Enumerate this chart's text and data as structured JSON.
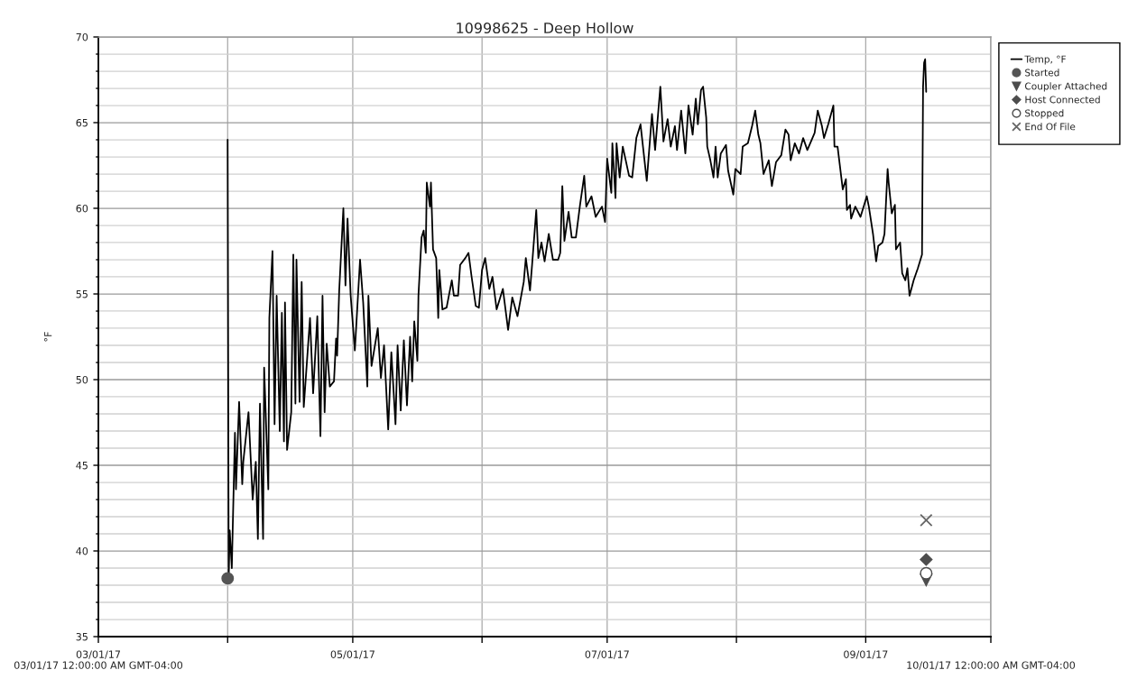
{
  "chart_data": {
    "type": "line",
    "title": "10998625 - Deep Hollow",
    "ylabel": "°F",
    "annotations": [
      "03/01/17 12:00:00 AM GMT-04:00",
      "10/01/17 12:00:00 AM GMT-04:00"
    ],
    "xlim": [
      "2017-03-01",
      "2017-10-01"
    ],
    "xticks": [
      {
        "value": "2017-03-01",
        "label": "03/01/17"
      },
      {
        "value": "2017-04-01",
        "label": null
      },
      {
        "value": "2017-05-01",
        "label": "05/01/17"
      },
      {
        "value": "2017-06-01",
        "label": null
      },
      {
        "value": "2017-07-01",
        "label": "07/01/17"
      },
      {
        "value": "2017-08-01",
        "label": null
      },
      {
        "value": "2017-09-01",
        "label": "09/01/17"
      },
      {
        "value": "2017-10-01",
        "label": null
      }
    ],
    "ylim": [
      35,
      70
    ],
    "yticks": [
      35,
      {
        "value": 36,
        "label": null
      },
      {
        "value": 37,
        "label": null
      },
      {
        "value": 38,
        "label": null
      },
      {
        "value": 39,
        "label": null
      },
      40,
      {
        "value": 41,
        "label": null
      },
      {
        "value": 42,
        "label": null
      },
      {
        "value": 43,
        "label": null
      },
      {
        "value": 44,
        "label": null
      },
      45,
      {
        "value": 46,
        "label": null
      },
      {
        "value": 47,
        "label": null
      },
      {
        "value": 48,
        "label": null
      },
      {
        "value": 49,
        "label": null
      },
      50,
      {
        "value": 51,
        "label": null
      },
      {
        "value": 52,
        "label": null
      },
      {
        "value": 53,
        "label": null
      },
      {
        "value": 54,
        "label": null
      },
      55,
      {
        "value": 56,
        "label": null
      },
      {
        "value": 57,
        "label": null
      },
      {
        "value": 58,
        "label": null
      },
      {
        "value": 59,
        "label": null
      },
      60,
      {
        "value": 61,
        "label": null
      },
      {
        "value": 62,
        "label": null
      },
      {
        "value": 63,
        "label": null
      },
      {
        "value": 64,
        "label": null
      },
      65,
      {
        "value": 66,
        "label": null
      },
      {
        "value": 67,
        "label": null
      },
      {
        "value": 68,
        "label": null
      },
      {
        "value": 69,
        "label": null
      },
      70
    ],
    "grid": true,
    "legend": "top right",
    "series": [
      {
        "name": "Temp, °F",
        "color": "#000000",
        "marker": "none",
        "line_style": "solid",
        "x": [
          "2017-04-01T00:00",
          "2017-04-01T06:00",
          "2017-04-01T12:00",
          "2017-04-02T00:00",
          "2017-04-02T18:00",
          "2017-04-03T00:00",
          "2017-04-03T18:00",
          "2017-04-04T12:00",
          "2017-04-04T18:00",
          "2017-04-06T00:00",
          "2017-04-07T00:00",
          "2017-04-07T18:00",
          "2017-04-08T06:00",
          "2017-04-08T18:00",
          "2017-04-09T12:00",
          "2017-04-09T18:00",
          "2017-04-10T18:00",
          "2017-04-11T00:00",
          "2017-04-11T18:00",
          "2017-04-12T06:00",
          "2017-04-12T18:00",
          "2017-04-13T12:00",
          "2017-04-14T00:00",
          "2017-04-14T12:00",
          "2017-04-14T18:00",
          "2017-04-15T06:00",
          "2017-04-16T06:00",
          "2017-04-16T18:00",
          "2017-04-17T06:00",
          "2017-04-17T12:00",
          "2017-04-18T06:00",
          "2017-04-18T18:00",
          "2017-04-19T06:00",
          "2017-04-20T18:00",
          "2017-04-21T12:00",
          "2017-04-22T12:00",
          "2017-04-23T06:00",
          "2017-04-23T18:00",
          "2017-04-24T06:00",
          "2017-04-24T18:00",
          "2017-04-25T12:00",
          "2017-04-26T12:00",
          "2017-04-27T00:00",
          "2017-04-27T06:00",
          "2017-04-27T18:00",
          "2017-04-28T18:00",
          "2017-04-29T06:00",
          "2017-04-29T18:00",
          "2017-04-30T12:00",
          "2017-05-01T12:00",
          "2017-05-02T18:00",
          "2017-05-03T12:00",
          "2017-05-04T12:00",
          "2017-05-04T18:00",
          "2017-05-05T12:00",
          "2017-05-07T00:00",
          "2017-05-07T18:00",
          "2017-05-08T12:00",
          "2017-05-09T12:00",
          "2017-05-10T06:00",
          "2017-05-11T06:00",
          "2017-05-11T18:00",
          "2017-05-12T12:00",
          "2017-05-13T06:00",
          "2017-05-14T00:00",
          "2017-05-14T18:00",
          "2017-05-15T06:00",
          "2017-05-15T18:00",
          "2017-05-16T12:00",
          "2017-05-16T18:00",
          "2017-05-17T12:00",
          "2017-05-18T00:00",
          "2017-05-18T12:00",
          "2017-05-18T18:00",
          "2017-05-19T12:00",
          "2017-05-19T18:00",
          "2017-05-20T06:00",
          "2017-05-21T00:00",
          "2017-05-21T12:00",
          "2017-05-21T18:00",
          "2017-05-22T12:00",
          "2017-05-23T12:00",
          "2017-05-24T18:00",
          "2017-05-25T06:00",
          "2017-05-26T06:00",
          "2017-05-26T18:00",
          "2017-05-28T00:00",
          "2017-05-28T18:00",
          "2017-05-29T12:00",
          "2017-05-30T12:00",
          "2017-05-31T06:00",
          "2017-06-01T00:00",
          "2017-06-01T18:00",
          "2017-06-02T18:00",
          "2017-06-03T12:00",
          "2017-06-04T12:00",
          "2017-06-06T00:00",
          "2017-06-07T06:00",
          "2017-06-08T06:00",
          "2017-06-09T12:00",
          "2017-06-11T00:00",
          "2017-06-11T12:00",
          "2017-06-12T12:00",
          "2017-06-13T00:00",
          "2017-06-14T00:00",
          "2017-06-14T12:00",
          "2017-06-15T06:00",
          "2017-06-16T00:00",
          "2017-06-17T00:00",
          "2017-06-18T00:00",
          "2017-06-19T06:00",
          "2017-06-19T18:00",
          "2017-06-20T06:00",
          "2017-06-20T18:00",
          "2017-06-21T18:00",
          "2017-06-22T12:00",
          "2017-06-23T12:00",
          "2017-06-24T12:00",
          "2017-06-25T12:00",
          "2017-06-26T00:00",
          "2017-06-27T06:00",
          "2017-06-28T06:00",
          "2017-06-29T18:00",
          "2017-06-30T12:00",
          "2017-07-01T00:00",
          "2017-07-02T00:00",
          "2017-07-02T06:00",
          "2017-07-03T00:00",
          "2017-07-03T06:00",
          "2017-07-04T00:00",
          "2017-07-04T18:00",
          "2017-07-06T06:00",
          "2017-07-07T00:00",
          "2017-07-08T00:00",
          "2017-07-09T00:00",
          "2017-07-10T12:00",
          "2017-07-11T18:00",
          "2017-07-12T12:00",
          "2017-07-13T18:00",
          "2017-07-14T12:00",
          "2017-07-15T12:00",
          "2017-07-16T06:00",
          "2017-07-17T06:00",
          "2017-07-17T18:00",
          "2017-07-18T18:00",
          "2017-07-19T18:00",
          "2017-07-20T12:00",
          "2017-07-21T12:00",
          "2017-07-22T06:00",
          "2017-07-22T18:00",
          "2017-07-23T12:00",
          "2017-07-24T00:00",
          "2017-07-24T18:00",
          "2017-07-25T00:00",
          "2017-07-25T18:00",
          "2017-07-26T12:00",
          "2017-07-27T00:00",
          "2017-07-27T12:00",
          "2017-07-28T06:00",
          "2017-07-29T12:00",
          "2017-07-30T00:00",
          "2017-07-31T06:00",
          "2017-07-31T18:00",
          "2017-08-02T00:00",
          "2017-08-02T12:00",
          "2017-08-03T18:00",
          "2017-08-04T18:00",
          "2017-08-05T12:00",
          "2017-08-06T06:00",
          "2017-08-06T18:00",
          "2017-08-07T12:00",
          "2017-08-08T18:00",
          "2017-08-09T12:00",
          "2017-08-10T12:00",
          "2017-08-11T18:00",
          "2017-08-12T18:00",
          "2017-08-13T12:00",
          "2017-08-14T00:00",
          "2017-08-15T00:00",
          "2017-08-16T00:00",
          "2017-08-17T00:00",
          "2017-08-18T00:00",
          "2017-08-19T18:00",
          "2017-08-20T12:00",
          "2017-08-21T12:00",
          "2017-08-22T00:00",
          "2017-08-23T00:00",
          "2017-08-24T06:00",
          "2017-08-24T12:00",
          "2017-08-25T06:00",
          "2017-08-26T12:00",
          "2017-08-27T06:00",
          "2017-08-27T12:00",
          "2017-08-28T06:00",
          "2017-08-28T12:00",
          "2017-08-29T12:00",
          "2017-08-30T18:00",
          "2017-09-01T06:00",
          "2017-09-01T18:00",
          "2017-09-02T18:00",
          "2017-09-03T12:00",
          "2017-09-04T00:00",
          "2017-09-05T00:00",
          "2017-09-05T12:00",
          "2017-09-06T06:00",
          "2017-09-06T12:00",
          "2017-09-07T06:00",
          "2017-09-08T00:00",
          "2017-09-08T06:00",
          "2017-09-09T06:00",
          "2017-09-09T18:00",
          "2017-09-10T12:00",
          "2017-09-11T00:00",
          "2017-09-11T12:00",
          "2017-09-12T12:00",
          "2017-09-13T12:00",
          "2017-09-14T12:00",
          "2017-09-14T18:00",
          "2017-09-15T00:00",
          "2017-09-15T06:00",
          "2017-09-15T12:00"
        ],
        "values": [
          64.0,
          38.4,
          41.2,
          39.0,
          46.9,
          43.6,
          48.7,
          43.9,
          45.2,
          48.1,
          43.0,
          45.2,
          40.7,
          48.6,
          40.7,
          50.7,
          43.6,
          53.6,
          57.5,
          47.4,
          54.9,
          47.0,
          53.9,
          46.4,
          54.5,
          45.9,
          48.1,
          57.3,
          48.6,
          57.0,
          48.7,
          55.7,
          48.4,
          53.6,
          49.2,
          53.7,
          46.7,
          54.9,
          48.1,
          52.1,
          49.6,
          49.9,
          52.4,
          51.4,
          55.2,
          60.0,
          55.5,
          59.4,
          54.9,
          51.7,
          57.0,
          54.5,
          49.6,
          54.9,
          50.8,
          53.0,
          50.1,
          52.0,
          47.1,
          51.6,
          47.4,
          52.0,
          48.2,
          52.3,
          48.5,
          52.5,
          49.9,
          53.4,
          51.1,
          54.9,
          58.3,
          58.7,
          57.4,
          61.5,
          60.1,
          61.5,
          57.6,
          57.1,
          53.6,
          56.4,
          54.1,
          54.2,
          55.8,
          54.9,
          54.9,
          56.7,
          57.1,
          57.4,
          56.0,
          54.3,
          54.2,
          56.4,
          57.1,
          55.3,
          56.0,
          54.1,
          55.3,
          52.9,
          54.8,
          53.7,
          55.7,
          57.1,
          55.2,
          56.7,
          59.9,
          57.1,
          58.0,
          56.9,
          58.5,
          57.0,
          57.0,
          57.4,
          61.3,
          58.1,
          59.8,
          58.3,
          58.3,
          60.2,
          61.9,
          60.1,
          60.7,
          59.5,
          60.1,
          59.2,
          62.9,
          60.9,
          63.8,
          60.6,
          63.8,
          61.8,
          63.6,
          61.9,
          61.8,
          64.1,
          64.9,
          61.6,
          65.5,
          63.4,
          67.1,
          63.9,
          65.2,
          63.6,
          64.8,
          63.4,
          65.7,
          63.2,
          66.0,
          64.3,
          66.4,
          64.9,
          66.9,
          67.1,
          65.3,
          63.6,
          62.8,
          61.8,
          63.6,
          61.8,
          63.2,
          63.7,
          62.2,
          60.8,
          62.3,
          62.0,
          63.6,
          63.8,
          64.8,
          65.7,
          64.3,
          63.8,
          62.0,
          62.8,
          61.3,
          62.7,
          63.1,
          64.6,
          64.3,
          62.8,
          63.8,
          63.2,
          64.1,
          63.4,
          64.4,
          65.7,
          64.8,
          64.1,
          64.9,
          66.0,
          63.6,
          63.6,
          61.1,
          61.7,
          59.9,
          60.2,
          59.4,
          60.1,
          59.5,
          60.7,
          60.1,
          58.5,
          56.9,
          57.8,
          58.0,
          58.5,
          62.3,
          61.5,
          59.7,
          60.2,
          57.6,
          58.0,
          56.2,
          55.8,
          56.5,
          54.9,
          55.8,
          56.5,
          57.3,
          67.1,
          68.5,
          68.7,
          66.8
        ]
      },
      {
        "name": "Started",
        "type": "scatter",
        "marker": "circle",
        "color": "#555555",
        "x": [
          "2017-04-01T00:00"
        ],
        "values": [
          38.4
        ]
      },
      {
        "name": "Coupler Attached",
        "type": "scatter",
        "marker": "triangle",
        "color": "#4d4d4d",
        "x": [
          "2017-09-15T12:00"
        ],
        "values": [
          38.3
        ]
      },
      {
        "name": "Host Connected",
        "type": "scatter",
        "marker": "diamond",
        "color": "#4d4d4d",
        "x": [
          "2017-09-15T12:00"
        ],
        "values": [
          39.5
        ]
      },
      {
        "name": "Stopped",
        "type": "scatter",
        "marker": "circle",
        "color": "#ffffff",
        "x": [
          "2017-09-15T12:00"
        ],
        "values": [
          38.7
        ]
      },
      {
        "name": "End Of File",
        "type": "scatter",
        "marker": "cross",
        "color": "#666666",
        "x": [
          "2017-09-15T12:00"
        ],
        "values": [
          41.8
        ]
      }
    ]
  }
}
